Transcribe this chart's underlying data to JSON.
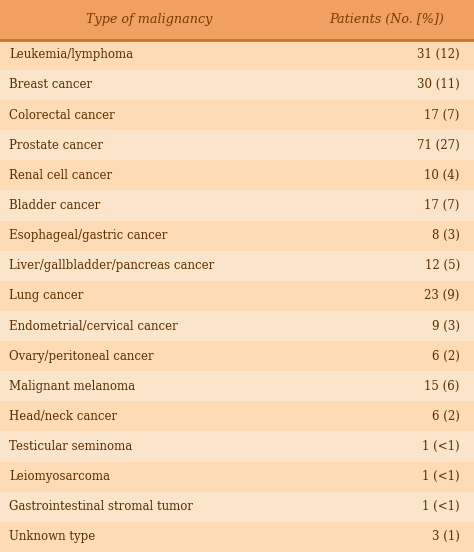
{
  "header_col1": "Type of malignancy",
  "header_col2": "Patients (No. [%])",
  "rows": [
    [
      "Leukemia/lymphoma",
      "31 (12)"
    ],
    [
      "Breast cancer",
      "30 (11)"
    ],
    [
      "Colorectal cancer",
      "17 (7)"
    ],
    [
      "Prostate cancer",
      "71 (27)"
    ],
    [
      "Renal cell cancer",
      "10 (4)"
    ],
    [
      "Bladder cancer",
      "17 (7)"
    ],
    [
      "Esophageal/gastric cancer",
      "8 (3)"
    ],
    [
      "Liver/gallbladder/pancreas cancer",
      "12 (5)"
    ],
    [
      "Lung cancer",
      "23 (9)"
    ],
    [
      "Endometrial/cervical cancer",
      "9 (3)"
    ],
    [
      "Ovary/peritoneal cancer",
      "6 (2)"
    ],
    [
      "Malignant melanoma",
      "15 (6)"
    ],
    [
      "Head/neck cancer",
      "6 (2)"
    ],
    [
      "Testicular seminoma",
      "1 (<1)"
    ],
    [
      "Leiomyosarcoma",
      "1 (<1)"
    ],
    [
      "Gastrointestinal stromal tumor",
      "1 (<1)"
    ],
    [
      "Unknown type",
      "3 (1)"
    ]
  ],
  "bg_color_even": "#FDDCB5",
  "bg_color_odd": "#FAE5CB",
  "header_bg": "#F0A060",
  "header_text_color": "#7B3B00",
  "row_text_color": "#5C2E00",
  "header_line_color": "#CC7722",
  "fig_bg": "#FDDCB5"
}
